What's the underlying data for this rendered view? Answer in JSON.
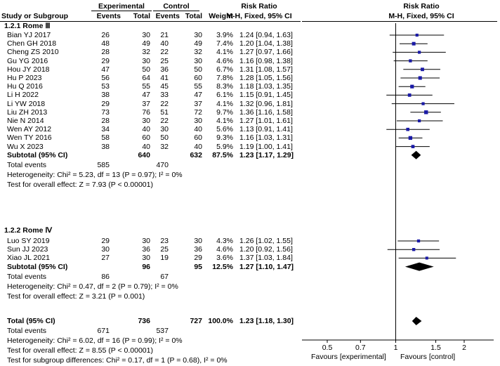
{
  "header": {
    "group1": "Experimental",
    "group2": "Control",
    "rr_title": "Risk Ratio",
    "plot_title": "Risk Ratio",
    "col_study": "Study or Subgroup",
    "col_events1": "Events",
    "col_total1": "Total",
    "col_events2": "Events",
    "col_total2": "Total",
    "col_weight": "Weight",
    "col_method": "M-H, Fixed, 95% CI",
    "plot_method": "M-H, Fixed, 95% CI"
  },
  "subgroups": [
    {
      "title": "1.2.1 Rome Ⅲ",
      "studies": [
        {
          "name": "Bian YJ 2017",
          "e1": "26",
          "t1": "30",
          "e2": "21",
          "t2": "30",
          "weight": "3.9%",
          "ci_text": "1.24 [0.94, 1.63]"
        },
        {
          "name": "Chen GH 2018",
          "e1": "48",
          "t1": "49",
          "e2": "40",
          "t2": "49",
          "weight": "7.4%",
          "ci_text": "1.20 [1.04, 1.38]"
        },
        {
          "name": "Cheng ZS 2010",
          "e1": "28",
          "t1": "32",
          "e2": "22",
          "t2": "32",
          "weight": "4.1%",
          "ci_text": "1.27 [0.97, 1.66]"
        },
        {
          "name": "Gu YG 2016",
          "e1": "29",
          "t1": "30",
          "e2": "25",
          "t2": "30",
          "weight": "4.6%",
          "ci_text": "1.16 [0.98, 1.38]"
        },
        {
          "name": "Hou JY 2018",
          "e1": "47",
          "t1": "50",
          "e2": "36",
          "t2": "50",
          "weight": "6.7%",
          "ci_text": "1.31 [1.08, 1.57]"
        },
        {
          "name": "Hu P 2023",
          "e1": "56",
          "t1": "64",
          "e2": "41",
          "t2": "60",
          "weight": "7.8%",
          "ci_text": "1.28 [1.05, 1.56]"
        },
        {
          "name": "Hu Q 2016",
          "e1": "53",
          "t1": "55",
          "e2": "45",
          "t2": "55",
          "weight": "8.3%",
          "ci_text": "1.18 [1.03, 1.35]"
        },
        {
          "name": "Li H 2022",
          "e1": "38",
          "t1": "47",
          "e2": "33",
          "t2": "47",
          "weight": "6.1%",
          "ci_text": "1.15 [0.91, 1.45]"
        },
        {
          "name": "Li YW 2018",
          "e1": "29",
          "t1": "37",
          "e2": "22",
          "t2": "37",
          "weight": "4.1%",
          "ci_text": "1.32 [0.96, 1.81]"
        },
        {
          "name": "Liu ZH 2013",
          "e1": "73",
          "t1": "76",
          "e2": "51",
          "t2": "72",
          "weight": "9.7%",
          "ci_text": "1.36 [1.16, 1.58]"
        },
        {
          "name": "Nie N 2014",
          "e1": "28",
          "t1": "30",
          "e2": "22",
          "t2": "30",
          "weight": "4.1%",
          "ci_text": "1.27 [1.01, 1.61]"
        },
        {
          "name": "Wen AY 2012",
          "e1": "34",
          "t1": "40",
          "e2": "30",
          "t2": "40",
          "weight": "5.6%",
          "ci_text": "1.13 [0.91, 1.41]"
        },
        {
          "name": "Wen TY 2016",
          "e1": "58",
          "t1": "60",
          "e2": "50",
          "t2": "60",
          "weight": "9.3%",
          "ci_text": "1.16 [1.03, 1.31]"
        },
        {
          "name": "Wu X 2023",
          "e1": "38",
          "t1": "40",
          "e2": "32",
          "t2": "40",
          "weight": "5.9%",
          "ci_text": "1.19 [1.00, 1.41]"
        }
      ],
      "subtotal": {
        "label": "Subtotal (95% CI)",
        "t1": "640",
        "t2": "632",
        "weight": "87.5%",
        "ci_text": "1.23 [1.17, 1.29]"
      },
      "total_events": {
        "label": "Total events",
        "e1": "585",
        "e2": "470"
      },
      "heterogeneity": "Heterogeneity: Chi² = 5.23, df = 13 (P = 0.97); I² = 0%",
      "overall": "Test for overall effect: Z = 7.93 (P < 0.00001)"
    },
    {
      "title": "1.2.2 Rome Ⅳ",
      "studies": [
        {
          "name": "Luo SY 2019",
          "e1": "29",
          "t1": "30",
          "e2": "23",
          "t2": "30",
          "weight": "4.3%",
          "ci_text": "1.26 [1.02, 1.55]"
        },
        {
          "name": "Sun JJ 2023",
          "e1": "30",
          "t1": "36",
          "e2": "25",
          "t2": "36",
          "weight": "4.6%",
          "ci_text": "1.20 [0.92, 1.56]"
        },
        {
          "name": "Xiao JL 2021",
          "e1": "27",
          "t1": "30",
          "e2": "19",
          "t2": "29",
          "weight": "3.6%",
          "ci_text": "1.37 [1.03, 1.84]"
        }
      ],
      "subtotal": {
        "label": "Subtotal (95% CI)",
        "t1": "96",
        "t2": "95",
        "weight": "12.5%",
        "ci_text": "1.27 [1.10, 1.47]"
      },
      "total_events": {
        "label": "Total events",
        "e1": "86",
        "e2": "67"
      },
      "heterogeneity": "Heterogeneity: Chi² = 0.47, df = 2 (P = 0.79); I² = 0%",
      "overall": "Test for overall effect: Z = 3.21 (P = 0.001)"
    }
  ],
  "total": {
    "label": "Total (95% CI)",
    "t1": "736",
    "t2": "727",
    "weight": "100.0%",
    "ci_text": "1.23 [1.18, 1.30]",
    "events_label": "Total events",
    "e1": "671",
    "e2": "537",
    "heterogeneity": "Heterogeneity: Chi² = 6.02, df = 16 (P = 0.99); I² = 0%",
    "overall": "Test for overall effect: Z = 8.55 (P < 0.00001)",
    "subgroup_diff": "Test for subgroup differences: Chi² = 0.17, df = 1 (P = 0.68), I² = 0%"
  },
  "axis": {
    "ticks": [
      "0.5",
      "0.7",
      "1",
      "1.5",
      "2"
    ],
    "tick_values": [
      0.5,
      0.7,
      1,
      1.5,
      2
    ],
    "favours_left": "Favours [experimental]",
    "favours_right": "Favours [control]"
  },
  "colors": {
    "point": "#1a1aa6",
    "line": "#000000",
    "diamond": "#000000"
  },
  "chart_data": {
    "type": "forest",
    "scale": "log",
    "xlim": [
      0.5,
      2
    ],
    "null_line": 1,
    "studies": [
      {
        "name": "Bian YJ 2017",
        "rr": 1.24,
        "lo": 0.94,
        "hi": 1.63,
        "weight": 3.9
      },
      {
        "name": "Chen GH 2018",
        "rr": 1.2,
        "lo": 1.04,
        "hi": 1.38,
        "weight": 7.4
      },
      {
        "name": "Cheng ZS 2010",
        "rr": 1.27,
        "lo": 0.97,
        "hi": 1.66,
        "weight": 4.1
      },
      {
        "name": "Gu YG 2016",
        "rr": 1.16,
        "lo": 0.98,
        "hi": 1.38,
        "weight": 4.6
      },
      {
        "name": "Hou JY 2018",
        "rr": 1.31,
        "lo": 1.08,
        "hi": 1.57,
        "weight": 6.7
      },
      {
        "name": "Hu P 2023",
        "rr": 1.28,
        "lo": 1.05,
        "hi": 1.56,
        "weight": 7.8
      },
      {
        "name": "Hu Q 2016",
        "rr": 1.18,
        "lo": 1.03,
        "hi": 1.35,
        "weight": 8.3
      },
      {
        "name": "Li H 2022",
        "rr": 1.15,
        "lo": 0.91,
        "hi": 1.45,
        "weight": 6.1
      },
      {
        "name": "Li YW 2018",
        "rr": 1.32,
        "lo": 0.96,
        "hi": 1.81,
        "weight": 4.1
      },
      {
        "name": "Liu ZH 2013",
        "rr": 1.36,
        "lo": 1.16,
        "hi": 1.58,
        "weight": 9.7
      },
      {
        "name": "Nie N 2014",
        "rr": 1.27,
        "lo": 1.01,
        "hi": 1.61,
        "weight": 4.1
      },
      {
        "name": "Wen AY 2012",
        "rr": 1.13,
        "lo": 0.91,
        "hi": 1.41,
        "weight": 5.6
      },
      {
        "name": "Wen TY 2016",
        "rr": 1.16,
        "lo": 1.03,
        "hi": 1.31,
        "weight": 9.3
      },
      {
        "name": "Wu X 2023",
        "rr": 1.19,
        "lo": 1.0,
        "hi": 1.41,
        "weight": 5.9
      },
      {
        "name": "Subtotal Rome Ⅲ",
        "rr": 1.23,
        "lo": 1.17,
        "hi": 1.29,
        "weight": 87.5,
        "diamond": true
      },
      {
        "name": "Luo SY 2019",
        "rr": 1.26,
        "lo": 1.02,
        "hi": 1.55,
        "weight": 4.3
      },
      {
        "name": "Sun JJ 2023",
        "rr": 1.2,
        "lo": 0.92,
        "hi": 1.56,
        "weight": 4.6
      },
      {
        "name": "Xiao JL 2021",
        "rr": 1.37,
        "lo": 1.03,
        "hi": 1.84,
        "weight": 3.6
      },
      {
        "name": "Subtotal Rome Ⅳ",
        "rr": 1.27,
        "lo": 1.1,
        "hi": 1.47,
        "weight": 12.5,
        "diamond": true
      },
      {
        "name": "Total",
        "rr": 1.23,
        "lo": 1.18,
        "hi": 1.3,
        "weight": 100.0,
        "diamond": true
      }
    ]
  }
}
